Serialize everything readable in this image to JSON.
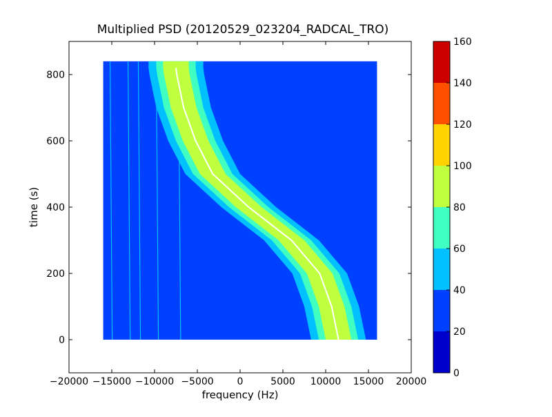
{
  "chart_data": {
    "type": "heatmap",
    "title": "Multiplied PSD (20120529_023204_RADCAL_TRO)",
    "xlabel": "frequency (Hz)",
    "ylabel": "time (s)",
    "xlim": [
      -20000,
      20000
    ],
    "ylim": [
      -100,
      900
    ],
    "data_extent": {
      "x": [
        -16000,
        16000
      ],
      "y": [
        0,
        840
      ]
    },
    "xticks": [
      -20000,
      -15000,
      -10000,
      -5000,
      0,
      5000,
      10000,
      15000,
      20000
    ],
    "xtick_labels": [
      "−20000",
      "−15000",
      "−10000",
      "−5000",
      "0",
      "5000",
      "10000",
      "15000",
      "20000"
    ],
    "yticks": [
      0,
      200,
      400,
      600,
      800
    ],
    "ytick_labels": [
      "0",
      "200",
      "400",
      "600",
      "800"
    ],
    "colormap": "jet",
    "colorbar": {
      "levels": [
        0,
        20,
        40,
        60,
        80,
        100,
        120,
        140,
        160
      ],
      "labels": [
        "0",
        "20",
        "40",
        "60",
        "80",
        "100",
        "120",
        "140",
        "160"
      ],
      "colors": [
        "#0000cd",
        "#0040ff",
        "#00c0ff",
        "#40ffc0",
        "#c0ff40",
        "#ffd200",
        "#ff5000",
        "#cd0000"
      ]
    },
    "background_level": 30,
    "vertical_lines_hz": [
      -15200,
      -13100,
      -11900,
      -9800,
      -7200
    ],
    "vertical_line_level": 50,
    "signal_center_track": {
      "time_s": [
        0,
        100,
        200,
        300,
        400,
        500,
        600,
        700,
        800,
        820
      ],
      "frequency_hz": [
        11500,
        10700,
        9300,
        6000,
        1000,
        -3200,
        -5200,
        -6600,
        -7400,
        -7500
      ]
    },
    "band_levels": [
      {
        "level": 50,
        "half_width_hz": 3200
      },
      {
        "level": 70,
        "half_width_hz": 2300
      },
      {
        "level": 90,
        "half_width_hz": 1500
      }
    ],
    "center_line_level": 150
  }
}
